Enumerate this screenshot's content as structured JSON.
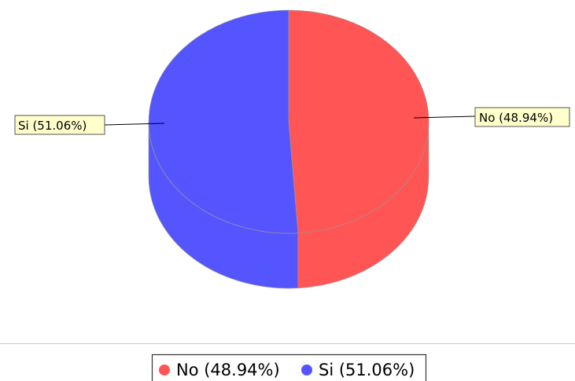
{
  "chart_data": {
    "type": "pie",
    "style": "3d",
    "slices": [
      {
        "name": "No",
        "value": 48.94,
        "label": "No (48.94%)",
        "color": "#ff5555"
      },
      {
        "name": "Si",
        "value": 51.06,
        "label": "Si (51.06%)",
        "color": "#5555ff"
      }
    ],
    "label_background": "#ffffcc",
    "legend": {
      "position": "bottom",
      "items": [
        {
          "label": "No (48.94%)",
          "color": "#ff5555"
        },
        {
          "label": "Si (51.06%)",
          "color": "#5555ff"
        }
      ]
    }
  }
}
